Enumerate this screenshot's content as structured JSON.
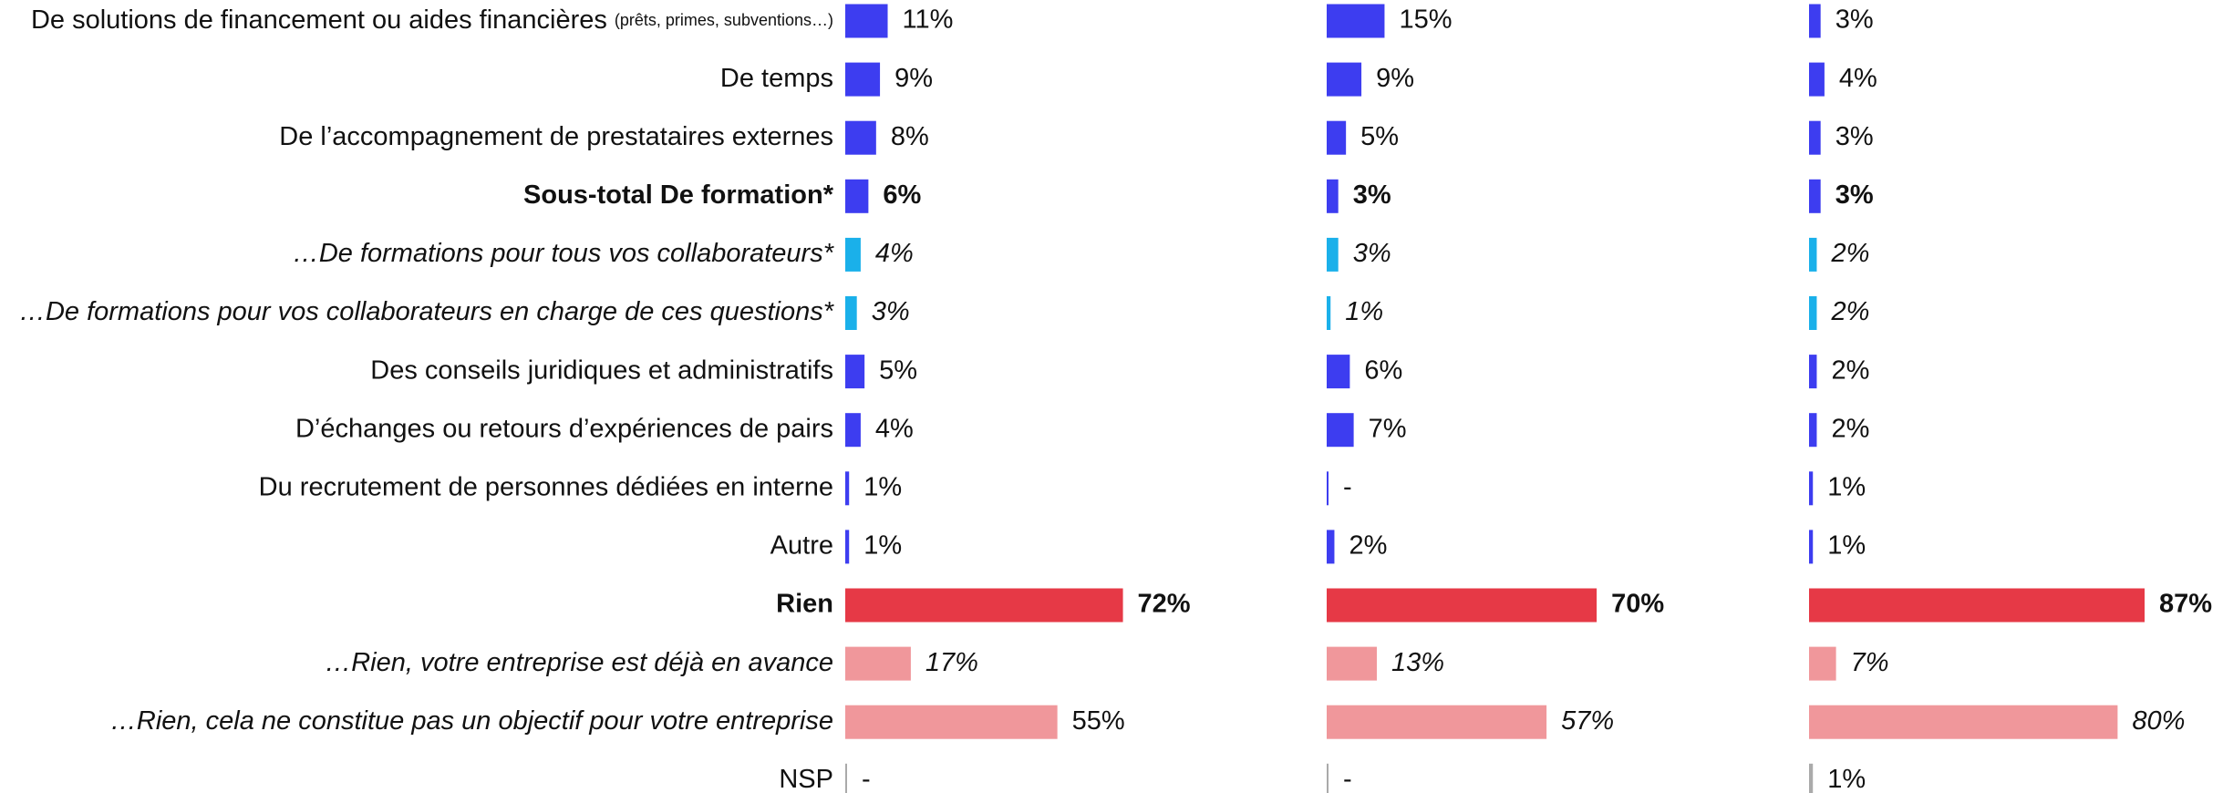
{
  "chart_data": {
    "type": "bar",
    "orientation": "horizontal",
    "categories": [
      {
        "label": "De solutions de financement ou aides financières",
        "note": "(prêts, primes, subventions…)"
      },
      "De temps",
      "De l’accompagnement de prestataires externes",
      "Sous-total De formation*",
      "…De formations pour tous vos collaborateurs*",
      "…De formations pour vos collaborateurs en charge de ces questions*",
      "Des conseils juridiques et administratifs",
      "D’échanges ou retours d’expériences de pairs",
      "Du recrutement de personnes dédiées en interne",
      "Autre",
      "Rien",
      "…Rien, votre entreprise est déjà en avance",
      "…Rien, cela ne constitue pas un objectif pour votre entreprise",
      "NSP"
    ],
    "category_styles": [
      "normal",
      "normal",
      "normal",
      "bold",
      "italic",
      "italic",
      "normal",
      "normal",
      "normal",
      "normal",
      "bold",
      "italic",
      "italic",
      "normal"
    ],
    "colors": [
      "#3d3df0",
      "#3d3df0",
      "#3d3df0",
      "#3d3df0",
      "#1ab0ea",
      "#1ab0ea",
      "#3d3df0",
      "#3d3df0",
      "#3d3df0",
      "#3d3df0",
      "#e63946",
      "#f0979b",
      "#f0979b",
      "#aaaaaa"
    ],
    "xlim": [
      0,
      100
    ],
    "series": [
      {
        "values": [
          11,
          9,
          8,
          6,
          4,
          3,
          5,
          4,
          1,
          1,
          72,
          17,
          55,
          0
        ],
        "value_labels": [
          "11%",
          "9%",
          "8%",
          "6%",
          "4%",
          "3%",
          "5%",
          "4%",
          "1%",
          "1%",
          "72%",
          "17%",
          "55%",
          "-"
        ],
        "label_styles": [
          "normal",
          "normal",
          "normal",
          "bold",
          "italic",
          "italic",
          "normal",
          "normal",
          "normal",
          "normal",
          "bold",
          "italic",
          "normal",
          "normal"
        ]
      },
      {
        "values": [
          15,
          9,
          5,
          3,
          3,
          1,
          6,
          7,
          0,
          2,
          70,
          13,
          57,
          0
        ],
        "value_labels": [
          "15%",
          "9%",
          "5%",
          "3%",
          "3%",
          "1%",
          "6%",
          "7%",
          "-",
          "2%",
          "70%",
          "13%",
          "57%",
          "-"
        ],
        "label_styles": [
          "normal",
          "normal",
          "normal",
          "bold",
          "italic",
          "italic",
          "normal",
          "normal",
          "normal",
          "normal",
          "bold",
          "italic",
          "italic",
          "normal"
        ]
      },
      {
        "values": [
          3,
          4,
          3,
          3,
          2,
          2,
          2,
          2,
          1,
          1,
          87,
          7,
          80,
          1
        ],
        "value_labels": [
          "3%",
          "4%",
          "3%",
          "3%",
          "2%",
          "2%",
          "2%",
          "2%",
          "1%",
          "1%",
          "87%",
          "7%",
          "80%",
          "1%"
        ],
        "label_styles": [
          "normal",
          "normal",
          "normal",
          "bold",
          "italic",
          "italic",
          "normal",
          "normal",
          "normal",
          "normal",
          "bold",
          "italic",
          "italic",
          "normal"
        ]
      }
    ]
  }
}
